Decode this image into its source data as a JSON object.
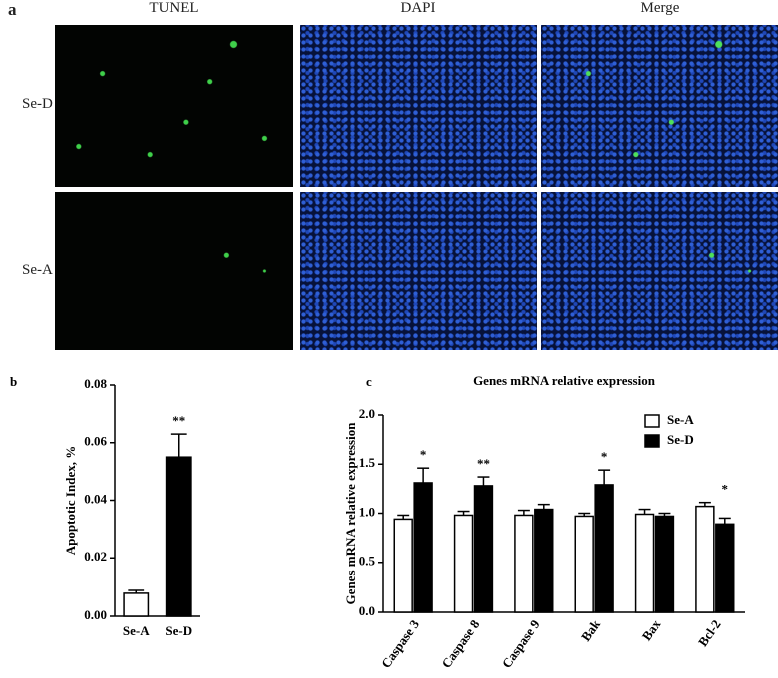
{
  "panel_a": {
    "label": "a",
    "columns": [
      "TUNEL",
      "DAPI",
      "Merge"
    ],
    "rows": [
      "Se-D",
      "Se-A"
    ]
  },
  "chart_data": [
    {
      "type": "bar",
      "panel_label": "b",
      "ylabel": "Apoptotic Index, %",
      "categories": [
        "Se-A",
        "Se-D"
      ],
      "values": [
        0.008,
        0.055
      ],
      "errors": [
        0.001,
        0.008
      ],
      "colors": [
        "#ffffff",
        "#000000"
      ],
      "edgecolor": "#000000",
      "annotations": [
        null,
        "**"
      ],
      "ylim": [
        0,
        0.08
      ],
      "yticks": [
        {
          "value": 0,
          "label": "0.00"
        },
        {
          "value": 0.02,
          "label": "0.02"
        },
        {
          "value": 0.04,
          "label": "0.04"
        },
        {
          "value": 0.06,
          "label": "0.06"
        },
        {
          "value": 0.08,
          "label": "0.08"
        }
      ]
    },
    {
      "type": "bar",
      "panel_label": "c",
      "title": "Genes mRNA relative expression",
      "ylabel": "Genes mRNA relative  expression",
      "categories": [
        "Caspase 3",
        "Caspase 8",
        "Caspase 9",
        "Bak",
        "Bax",
        "Bcl-2"
      ],
      "series": [
        {
          "name": "Se-A",
          "color": "#ffffff",
          "values": [
            0.94,
            0.98,
            0.98,
            0.97,
            0.99,
            1.07
          ],
          "errors": [
            0.04,
            0.04,
            0.05,
            0.03,
            0.05,
            0.04
          ]
        },
        {
          "name": "Se-D",
          "color": "#000000",
          "values": [
            1.31,
            1.28,
            1.04,
            1.29,
            0.97,
            0.89
          ],
          "errors": [
            0.15,
            0.09,
            0.05,
            0.15,
            0.03,
            0.06
          ]
        }
      ],
      "edgecolor": "#000000",
      "annotations": [
        "*",
        "**",
        null,
        "*",
        null,
        "*"
      ],
      "legend": "upper right",
      "ylim": [
        0,
        2
      ],
      "yticks": [
        {
          "value": 0,
          "label": "0.0"
        },
        {
          "value": 0.5,
          "label": "0.5"
        },
        {
          "value": 1,
          "label": "1.0"
        },
        {
          "value": 1.5,
          "label": "1.5"
        },
        {
          "value": 2,
          "label": "2.0"
        }
      ]
    }
  ]
}
